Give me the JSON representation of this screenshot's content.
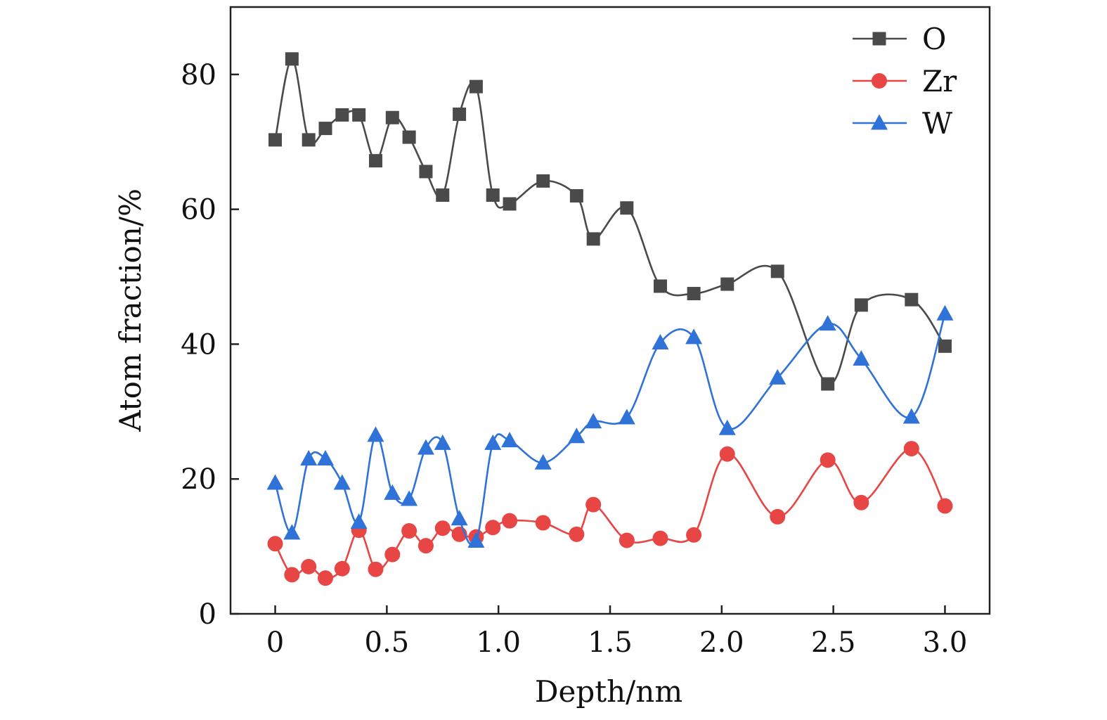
{
  "chart_data": {
    "type": "line",
    "xlabel": "Depth/nm",
    "ylabel": "Atom fraction/%",
    "xlim": [
      -0.2,
      3.2
    ],
    "ylim": [
      0,
      90
    ],
    "x_ticks": [
      0,
      0.5,
      1.0,
      1.5,
      2.0,
      2.5,
      3.0
    ],
    "x_tick_labels": [
      "0",
      "0.5",
      "1.0",
      "1.5",
      "2.0",
      "2.5",
      "3.0"
    ],
    "y_ticks": [
      0,
      20,
      40,
      60,
      80
    ],
    "y_tick_labels": [
      "0",
      "20",
      "40",
      "60",
      "80"
    ],
    "grid": false,
    "legend_position": "top-right",
    "x": [
      0,
      0.075,
      0.15,
      0.225,
      0.3,
      0.375,
      0.45,
      0.525,
      0.6,
      0.675,
      0.75,
      0.825,
      0.9,
      0.975,
      1.05,
      1.2,
      1.35,
      1.425,
      1.575,
      1.725,
      1.875,
      2.025,
      2.25,
      2.475,
      2.625,
      2.85,
      3.0
    ],
    "series": [
      {
        "name": "O",
        "color": "#4a4a4a",
        "marker": "square",
        "values": [
          70.3,
          82.3,
          70.3,
          72.0,
          74.0,
          74.0,
          67.2,
          73.6,
          70.7,
          65.6,
          62.1,
          74.1,
          78.2,
          62.1,
          60.8,
          64.2,
          62.0,
          55.6,
          60.2,
          48.6,
          47.5,
          48.9,
          50.8,
          34.1,
          45.8,
          46.6,
          39.7
        ]
      },
      {
        "name": "Zr",
        "color": "#e84545",
        "marker": "circle",
        "values": [
          10.4,
          5.8,
          7.0,
          5.3,
          6.7,
          12.4,
          6.6,
          8.8,
          12.3,
          10.1,
          12.7,
          11.8,
          11.4,
          12.8,
          13.8,
          13.5,
          11.8,
          16.2,
          10.9,
          11.2,
          11.7,
          23.7,
          14.4,
          22.8,
          16.5,
          24.5,
          16.0
        ]
      },
      {
        "name": "W",
        "color": "#2f72d8",
        "marker": "triangle",
        "values": [
          19.4,
          12.0,
          23.0,
          23.0,
          19.4,
          13.6,
          26.5,
          17.9,
          17.0,
          24.6,
          25.3,
          14.1,
          10.8,
          25.3,
          25.7,
          22.4,
          26.3,
          28.5,
          29.1,
          40.2,
          41.0,
          27.5,
          35.0,
          43.0,
          37.8,
          29.2,
          44.5
        ]
      }
    ]
  }
}
